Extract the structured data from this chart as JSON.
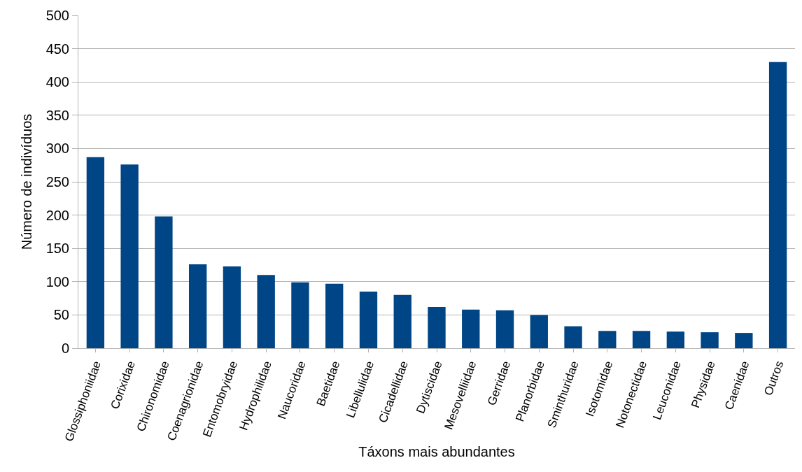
{
  "chart_data": {
    "type": "bar",
    "xlabel": "Táxons mais abundantes",
    "ylabel": "Número de indivíduos",
    "categories": [
      "Glossiphoniidae",
      "Corixidae",
      "Chironomidae",
      "Coenagrionidae",
      "Entomobryidae",
      "Hydrophilidae",
      "Naucoridae",
      "Baetidae",
      "Libellulidae",
      "Cicadellidae",
      "Dytiscidae",
      "Mesovelliidae",
      "Gerridae",
      "Planorbidae",
      "Sminthuridae",
      "Isotomidae",
      "Notonectidae",
      "Leuconidae",
      "Physidae",
      "Caenidae",
      "Outros"
    ],
    "values": [
      287,
      276,
      198,
      126,
      123,
      110,
      99,
      97,
      85,
      80,
      62,
      58,
      57,
      50,
      33,
      26,
      26,
      25,
      24,
      23,
      430
    ],
    "color": "#004586",
    "ylim": [
      0,
      500
    ],
    "yticks": [
      0,
      50,
      100,
      150,
      200,
      250,
      300,
      350,
      400,
      450,
      500
    ],
    "grid": "y",
    "legend": false
  }
}
